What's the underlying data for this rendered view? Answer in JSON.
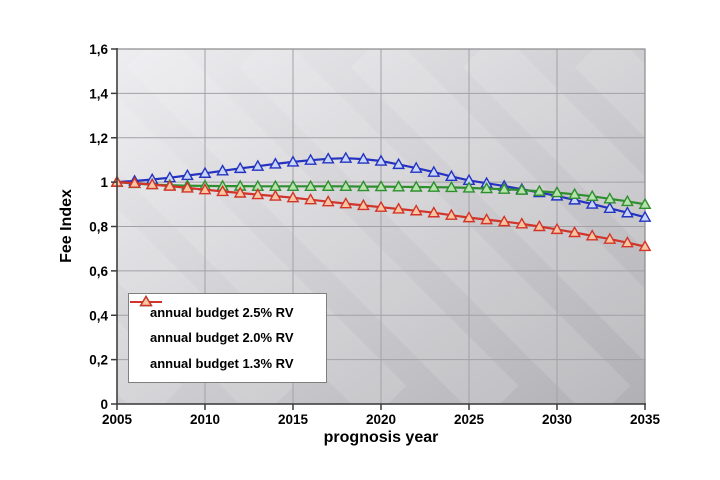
{
  "window": {
    "background": "#ffffff"
  },
  "axis_titles": {
    "y": "Fee Index",
    "x": "prognosis year"
  },
  "chart_data": {
    "type": "line",
    "title": "",
    "xlabel": "prognosis year",
    "ylabel": "Fee Index",
    "xlim": [
      2005,
      2035
    ],
    "ylim": [
      0,
      1.6
    ],
    "grid": true,
    "legend_position": "inside-bottom-left",
    "x_ticks": {
      "values": [
        2005,
        2010,
        2015,
        2020,
        2025,
        2030,
        2035
      ],
      "labels": [
        "2005",
        "2010",
        "2015",
        "2020",
        "2025",
        "2030",
        "2035"
      ]
    },
    "y_ticks": {
      "values": [
        0,
        0.2,
        0.4,
        0.6,
        0.8,
        1.0,
        1.2,
        1.4,
        1.6
      ],
      "labels": [
        "0",
        "0,2",
        "0,4",
        "0,6",
        "0,8",
        "1",
        "1,2",
        "1,4",
        "1,6"
      ]
    },
    "x": [
      2005,
      2006,
      2007,
      2008,
      2009,
      2010,
      2011,
      2012,
      2013,
      2014,
      2015,
      2016,
      2017,
      2018,
      2019,
      2020,
      2021,
      2022,
      2023,
      2024,
      2025,
      2026,
      2027,
      2028,
      2029,
      2030,
      2031,
      2032,
      2033,
      2034,
      2035
    ],
    "series": [
      {
        "name": "annual budget 2.5% RV",
        "line_color": "#2433c0",
        "marker": "triangle",
        "marker_fill": "#c9d6f8",
        "values": [
          1.0,
          1.005,
          1.012,
          1.02,
          1.03,
          1.04,
          1.051,
          1.062,
          1.072,
          1.082,
          1.091,
          1.099,
          1.105,
          1.108,
          1.104,
          1.095,
          1.08,
          1.063,
          1.045,
          1.026,
          1.008,
          0.995,
          0.982,
          0.968,
          0.953,
          0.938,
          0.92,
          0.901,
          0.882,
          0.862,
          0.842
        ]
      },
      {
        "name": "annual budget 2.0% RV",
        "line_color": "#2f8f2f",
        "marker": "triangle",
        "marker_fill": "#b6e2ab",
        "values": [
          1.0,
          0.994,
          0.989,
          0.986,
          0.984,
          0.983,
          0.982,
          0.982,
          0.981,
          0.981,
          0.981,
          0.981,
          0.981,
          0.981,
          0.98,
          0.98,
          0.979,
          0.978,
          0.977,
          0.976,
          0.974,
          0.971,
          0.968,
          0.964,
          0.959,
          0.953,
          0.945,
          0.936,
          0.925,
          0.913,
          0.9
        ]
      },
      {
        "name": "annual budget 1.3% RV",
        "line_color": "#d2342a",
        "marker": "triangle",
        "marker_fill": "#f9c6a2",
        "values": [
          1.0,
          0.995,
          0.989,
          0.982,
          0.974,
          0.966,
          0.958,
          0.951,
          0.944,
          0.937,
          0.93,
          0.921,
          0.912,
          0.903,
          0.895,
          0.887,
          0.879,
          0.871,
          0.862,
          0.851,
          0.84,
          0.831,
          0.822,
          0.812,
          0.8,
          0.787,
          0.773,
          0.758,
          0.743,
          0.727,
          0.71
        ]
      }
    ],
    "plot_style": {
      "bg_from": "#eeedf0",
      "bg_to": "#b1b0b4",
      "stripe_color": "rgba(255,255,255,0.13)",
      "gridline_color": "#a2a2a6",
      "border_color": "#8a8a8a",
      "axis_color": "#3c3c3c"
    }
  }
}
